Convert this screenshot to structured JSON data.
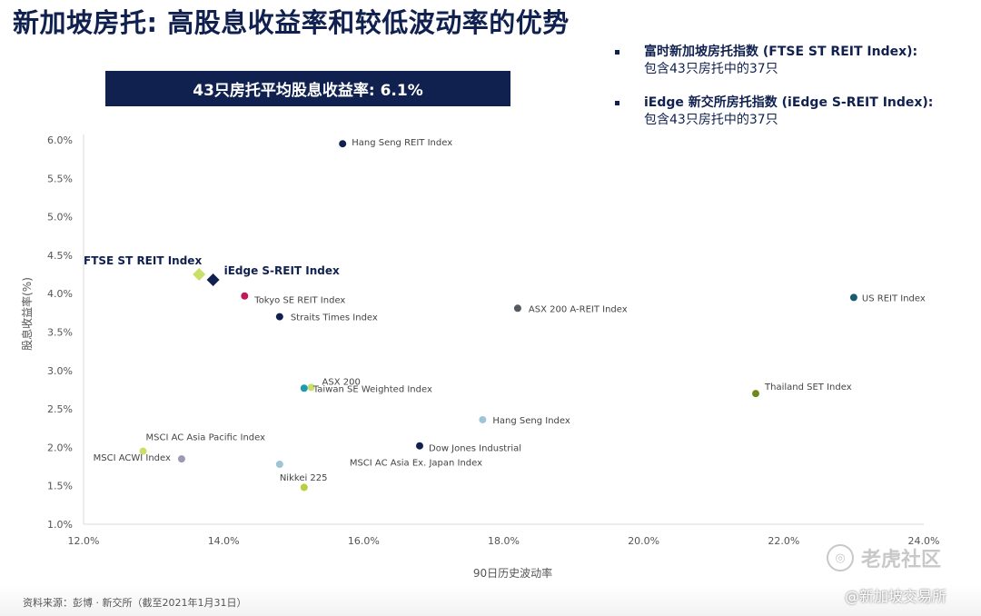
{
  "title": "新加坡房托: 高股息收益率和较低波动率的优势",
  "banner": "43只房托平均股息收益率: 6.1%",
  "notes": [
    {
      "head": "富时新加坡房托指数 (FTSE ST REIT Index):",
      "body": "包含43只房托中的37只"
    },
    {
      "head": "iEdge 新交所房托指数 (iEdge S-REIT Index):",
      "body": "包含43只房托中的37只"
    }
  ],
  "source": "资料来源：彭博 · 新交所（截至2021年1月31日）",
  "watermark_brand": "老虎社区",
  "watermark_user": "@新加坡交易所",
  "chart_data": {
    "type": "scatter",
    "xlabel": "90日历史波动率",
    "ylabel": "股息收益率(%)",
    "xlim": [
      12,
      24
    ],
    "ylim": [
      1,
      6
    ],
    "xticks": [
      12,
      14,
      16,
      18,
      20,
      22,
      24
    ],
    "yticks": [
      1,
      1.5,
      2,
      2.5,
      3,
      3.5,
      4,
      4.5,
      5,
      5.5,
      6
    ],
    "tick_format": "percent_1dp",
    "points": [
      {
        "label": "Hang Seng REIT Index",
        "x": 15.7,
        "y": 5.95,
        "color": "#10214f",
        "shape": "circle"
      },
      {
        "label": "FTSE ST REIT Index",
        "x": 13.65,
        "y": 4.25,
        "color": "#c8e06a",
        "shape": "diamond",
        "bold": true
      },
      {
        "label": "iEdge S-REIT Index",
        "x": 13.85,
        "y": 4.18,
        "color": "#10214f",
        "shape": "diamond",
        "bold": true
      },
      {
        "label": "Tokyo SE REIT Index",
        "x": 14.3,
        "y": 3.97,
        "color": "#c0185a",
        "shape": "circle"
      },
      {
        "label": "Straits Times Index",
        "x": 14.8,
        "y": 3.7,
        "color": "#10214f",
        "shape": "circle"
      },
      {
        "label": "ASX 200 A-REIT Index",
        "x": 18.2,
        "y": 3.81,
        "color": "#555a60",
        "shape": "circle"
      },
      {
        "label": "US REIT Index",
        "x": 23.0,
        "y": 3.95,
        "color": "#1a5a70",
        "shape": "circle"
      },
      {
        "label": "ASX 200",
        "x": 15.25,
        "y": 2.78,
        "color": "#c8e06a",
        "shape": "circle"
      },
      {
        "label": "Taiwan SE Weighted Index",
        "x": 15.15,
        "y": 2.77,
        "color": "#1e9ab0",
        "shape": "circle"
      },
      {
        "label": "Thailand SET Index",
        "x": 21.6,
        "y": 2.7,
        "color": "#6b8a1e",
        "shape": "circle"
      },
      {
        "label": "Hang Seng Index",
        "x": 17.7,
        "y": 2.36,
        "color": "#9ec4d8",
        "shape": "circle"
      },
      {
        "label": "Dow Jones Industrial",
        "x": 16.8,
        "y": 2.02,
        "color": "#10214f",
        "shape": "circle"
      },
      {
        "label": "MSCI AC Asia Pacific Index",
        "x": 12.85,
        "y": 1.95,
        "color": "#c8e06a",
        "shape": "circle"
      },
      {
        "label": "MSCI ACWI Index",
        "x": 13.4,
        "y": 1.85,
        "color": "#9a9ab0",
        "shape": "circle"
      },
      {
        "label": "Nikkei 225",
        "x": 14.8,
        "y": 1.78,
        "color": "#9ec4d8",
        "shape": "circle"
      },
      {
        "label": "MSCI AC Asia Ex. Japan Index",
        "x": 15.15,
        "y": 1.48,
        "color": "#b8d040",
        "shape": "circle"
      }
    ]
  }
}
